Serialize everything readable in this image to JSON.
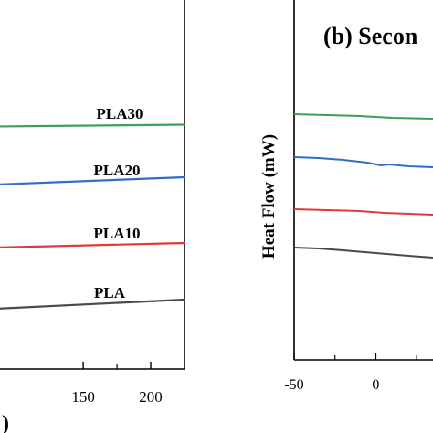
{
  "chart_data": [
    {
      "type": "line",
      "title": "",
      "xlabel": ")",
      "ylabel": "",
      "xlim": [
        85,
        225
      ],
      "ticks": [
        {
          "value": 150,
          "label": "150"
        },
        {
          "value": 200,
          "label": "200"
        }
      ],
      "series": [
        {
          "name": "PLA30",
          "color": "#3aa05a",
          "x": [
            85,
            225
          ],
          "y": [
            138.5,
            136.5
          ]
        },
        {
          "name": "PLA20",
          "color": "#2f6fc8",
          "x": [
            85,
            225
          ],
          "y": [
            202,
            194
          ]
        },
        {
          "name": "PLA10",
          "color": "#e03a3a",
          "x": [
            85,
            225
          ],
          "y": [
            271,
            266
          ]
        },
        {
          "name": "PLA",
          "color": "#4a4a4a",
          "x": [
            85,
            225
          ],
          "y": [
            338,
            328
          ]
        }
      ],
      "labels": [
        {
          "series": "PLA30",
          "text": "PLA30"
        },
        {
          "series": "PLA20",
          "text": "PLA20"
        },
        {
          "series": "PLA10",
          "text": "PLA10"
        },
        {
          "series": "PLA",
          "text": "PLA"
        }
      ]
    },
    {
      "type": "line",
      "panel_label": "(b) Secon",
      "xlabel": "",
      "ylabel": "Heat Flow (mW)",
      "xlim": [
        -50,
        35
      ],
      "ticks": [
        {
          "value": -50,
          "label": "-50"
        },
        {
          "value": 0,
          "label": "0"
        }
      ],
      "series": [
        {
          "color": "#3aa05a",
          "x": [
            -50,
            -30,
            -10,
            10,
            35
          ],
          "y": [
            125,
            126,
            127,
            129,
            130
          ]
        },
        {
          "color": "#2f6fc8",
          "x": [
            -50,
            -35,
            -20,
            -5,
            3,
            8,
            20,
            35
          ],
          "y": [
            172,
            173,
            175,
            178,
            181,
            180,
            182,
            183
          ]
        },
        {
          "color": "#e03a3a",
          "x": [
            -50,
            -30,
            -10,
            5,
            20,
            35
          ],
          "y": [
            229,
            230,
            231,
            233,
            234,
            235
          ]
        },
        {
          "color": "#4a4a4a",
          "x": [
            -50,
            -35,
            -20,
            0,
            20,
            35
          ],
          "y": [
            271,
            272,
            274,
            277,
            280,
            282
          ]
        }
      ]
    }
  ]
}
